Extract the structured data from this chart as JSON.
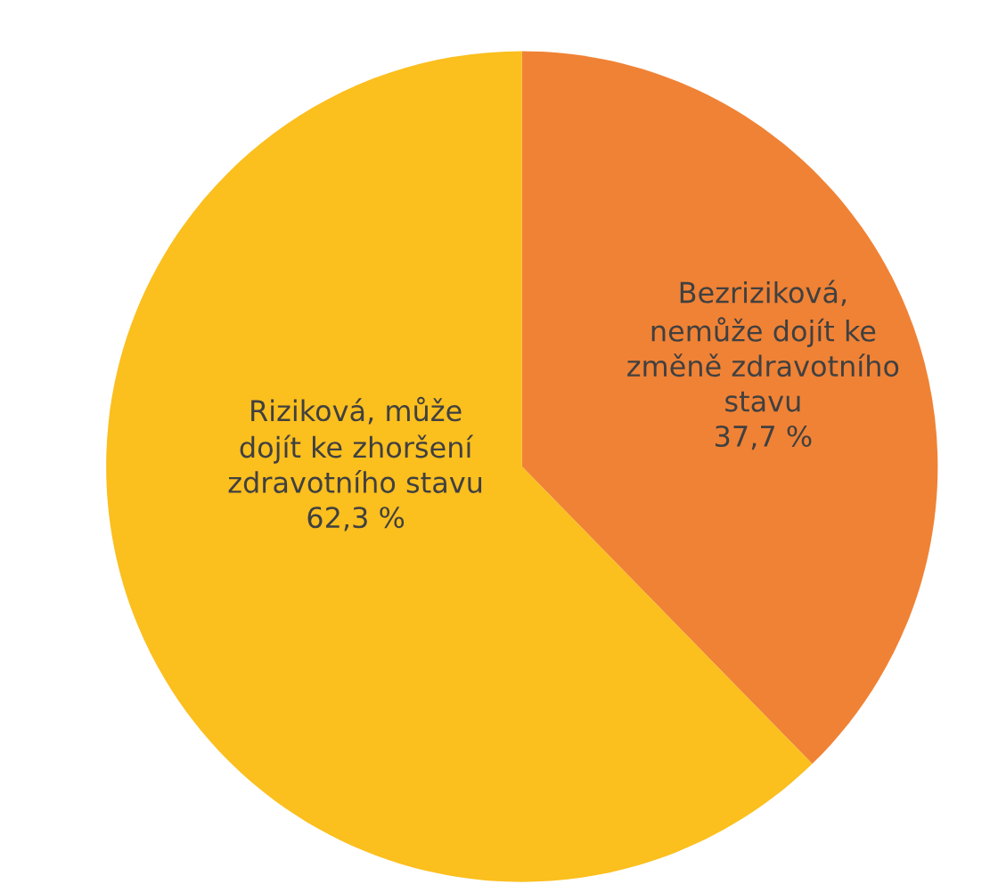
{
  "chart_data": {
    "type": "pie",
    "categories": [
      "Bezriziková,\nnemůže dojít ke\nzměně zdravotního\nstavu",
      "Riziková, může\ndojít ke zhoršení\nzdravotního stavu"
    ],
    "values": [
      37.7,
      62.3
    ],
    "value_labels": [
      "37,7 %",
      "62,3 %"
    ],
    "colors": [
      "#f08235",
      "#fbbf1e"
    ],
    "legend": false
  }
}
